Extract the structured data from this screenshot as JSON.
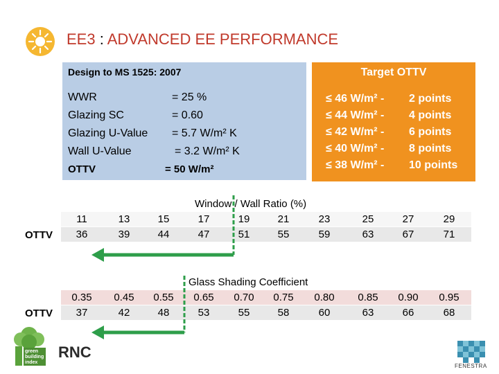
{
  "header": {
    "code": "EE3",
    "separator": " : ",
    "title": "ADVANCED EE PERFORMANCE",
    "icon": "sun-icon"
  },
  "design": {
    "heading": "Design to MS 1525: 2007",
    "rows": [
      {
        "label": "WWR",
        "value": "=  25 %"
      },
      {
        "label": "Glazing  SC",
        "value": "=  0.60"
      },
      {
        "label": "Glazing  U-Value",
        "value": "=  5.7  W/m² K"
      },
      {
        "label": "Wall U-Value",
        "value": "=  3.2  W/m² K"
      },
      {
        "label": "OTTV",
        "value": "=  50  W/m²"
      }
    ]
  },
  "target": {
    "heading": "Target OTTV",
    "rows": [
      {
        "limit": "≤ 46 W/m²  -",
        "points": "  2 points"
      },
      {
        "limit": "≤ 44 W/m²  -",
        "points": "  4 points"
      },
      {
        "limit": "≤ 42 W/m²  -",
        "points": "  6 points"
      },
      {
        "limit": "≤ 40 W/m²  -",
        "points": "  8 points"
      },
      {
        "limit": "≤ 38 W/m²  -",
        "points": "10 points"
      }
    ]
  },
  "wwr_table": {
    "title": "Window / Wall Ratio (%)",
    "row_label": "OTTV",
    "wwr": [
      "11",
      "13",
      "15",
      "17",
      "19",
      "21",
      "23",
      "25",
      "27",
      "29"
    ],
    "ottv": [
      "36",
      "39",
      "44",
      "47",
      "51",
      "55",
      "59",
      "63",
      "67",
      "71"
    ]
  },
  "sc_table": {
    "title": "Glass Shading Coefficient",
    "row_label": "OTTV",
    "sc": [
      "0.35",
      "0.45",
      "0.55",
      "0.65",
      "0.70",
      "0.75",
      "0.80",
      "0.85",
      "0.90",
      "0.95"
    ],
    "ottv": [
      "37",
      "42",
      "48",
      "53",
      "55",
      "58",
      "60",
      "63",
      "66",
      "68"
    ]
  },
  "footer": {
    "left_logo_icon": "green-building-index-logo",
    "left_logo_text": [
      "green",
      "building",
      "index"
    ],
    "org": "RNC",
    "right_logo_icon": "fenestra-logo",
    "right_logo_text": "FENESTRA"
  },
  "colors": {
    "title": "#c0392b",
    "design_box": "#b9cde5",
    "target_box": "#f0921f",
    "arrow_green": "#2e9e4a"
  }
}
